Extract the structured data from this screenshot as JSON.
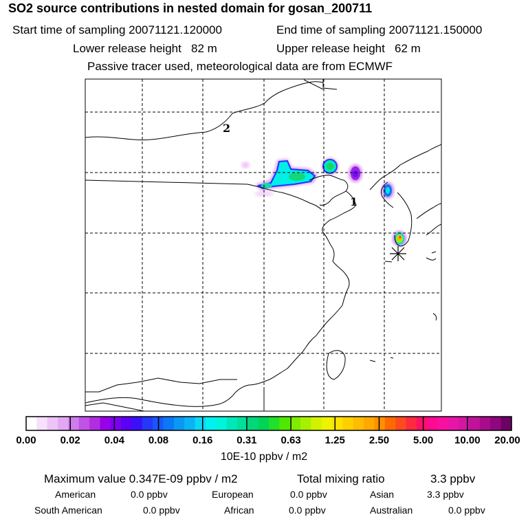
{
  "header": {
    "title": "SO2 source contributions in nested domain for gosan_200711",
    "start_label": "Start time of sampling 20071121.120000",
    "end_label": "End time of sampling 20071121.150000",
    "lower_label": "Lower release height   82 m",
    "upper_label": "Upper release height   62 m",
    "note": "Passive tracer used, meteorological data are from ECMWF"
  },
  "map": {
    "markers": [
      {
        "label": "1"
      },
      {
        "label": "2"
      }
    ],
    "receptor": "asterisk-marker"
  },
  "colorbar": {
    "ticks": [
      "0.00",
      "0.02",
      "0.04",
      "0.08",
      "0.16",
      "0.31",
      "0.63",
      "1.25",
      "2.50",
      "5.00",
      "10.00",
      "20.00"
    ],
    "unit": "10E-10 ppbv / m2",
    "colors": [
      "#ffffff",
      "#f6e0fb",
      "#ecc4f6",
      "#e3a8f2",
      "#d07ceb",
      "#c052e6",
      "#b02ee2",
      "#9a00ea",
      "#7c00f0",
      "#5a00f4",
      "#3a10f8",
      "#2438fa",
      "#1a56fc",
      "#0b78f6",
      "#0a98f4",
      "#0ab4f4",
      "#0cd6f2",
      "#00f2f0",
      "#00f4da",
      "#00e8b8",
      "#00e09a",
      "#00d87a",
      "#00d55a",
      "#20e02a",
      "#50e800",
      "#80ec00",
      "#a8f000",
      "#d2f200",
      "#eef200",
      "#ffe200",
      "#ffd000",
      "#ffbc00",
      "#ffa800",
      "#ff9000",
      "#ff6a00",
      "#ff4a20",
      "#ff2a40",
      "#ff1068",
      "#ff0a90",
      "#f810a0",
      "#e814a8",
      "#d416a4",
      "#c0129a",
      "#a80c8c",
      "#8e0680",
      "#6e0262"
    ]
  },
  "stats": {
    "max_label": "Maximum value  0.347E-09 ppbv / m2",
    "total_label": "Total mixing ratio",
    "total_value": "3.3 ppbv",
    "american_label": "American",
    "american_value": "0.0 ppbv",
    "european_label": "European",
    "european_value": "0.0 ppbv",
    "asian_label": "Asian",
    "asian_value": "3.3 ppbv",
    "south_american_label": "South American",
    "south_american_value": "0.0 ppbv",
    "african_label": "African",
    "african_value": "0.0 ppbv",
    "australian_label": "Australian",
    "australian_value": "0.0 ppbv"
  }
}
